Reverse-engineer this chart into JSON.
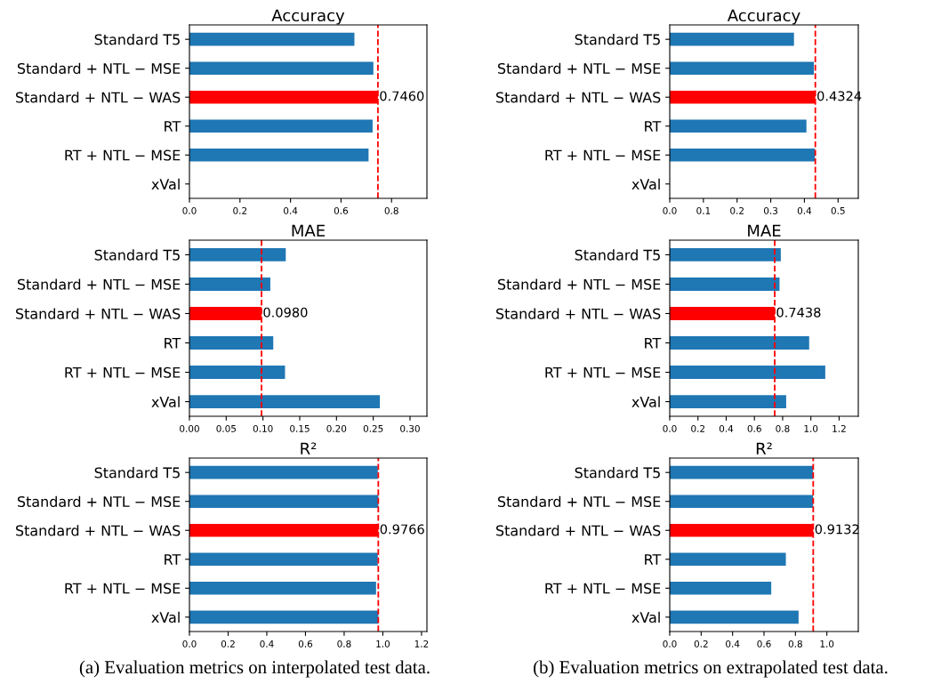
{
  "chart_data": [
    {
      "type": "bar",
      "orientation": "horizontal",
      "title": "Accuracy",
      "categories": [
        "Standard T5",
        "Standard + NTL − MSE",
        "Standard + NTL − WAS",
        "RT",
        "RT + NTL − MSE",
        "xVal"
      ],
      "values": [
        0.653,
        0.728,
        0.746,
        0.725,
        0.709,
        0
      ],
      "colors": [
        "#1f77b4",
        "#1f77b4",
        "#ff0000",
        "#1f77b4",
        "#1f77b4",
        "#1f77b4"
      ],
      "value_labels": [
        null,
        null,
        "0.7460",
        null,
        null,
        null
      ],
      "xlim": [
        0,
        0.94
      ],
      "xticks": [
        {
          "value": 0,
          "label": "0.0"
        },
        {
          "value": 0.2,
          "label": "0.2"
        },
        {
          "value": 0.4,
          "label": "0.4"
        },
        {
          "value": 0.6,
          "label": "0.6"
        },
        {
          "value": 0.8,
          "label": "0.8"
        }
      ],
      "ref_lines": [
        {
          "axis": "x",
          "value": 0.746,
          "label": null,
          "color": "#ff0000",
          "line_style": "dashed"
        }
      ]
    },
    {
      "type": "bar",
      "orientation": "horizontal",
      "title": "Accuracy",
      "categories": [
        "Standard T5",
        "Standard + NTL − MSE",
        "Standard + NTL − WAS",
        "RT",
        "RT + NTL − MSE",
        "xVal"
      ],
      "values": [
        0.369,
        0.428,
        0.4324,
        0.406,
        0.431,
        0
      ],
      "colors": [
        "#1f77b4",
        "#1f77b4",
        "#ff0000",
        "#1f77b4",
        "#1f77b4",
        "#1f77b4"
      ],
      "value_labels": [
        null,
        null,
        "0.4324",
        null,
        null,
        null
      ],
      "xlim": [
        0,
        0.56
      ],
      "xticks": [
        {
          "value": 0,
          "label": "0.0"
        },
        {
          "value": 0.1,
          "label": "0.1"
        },
        {
          "value": 0.2,
          "label": "0.2"
        },
        {
          "value": 0.3,
          "label": "0.3"
        },
        {
          "value": 0.4,
          "label": "0.4"
        },
        {
          "value": 0.5,
          "label": "0.5"
        }
      ],
      "ref_lines": [
        {
          "axis": "x",
          "value": 0.4324,
          "label": null,
          "color": "#ff0000",
          "line_style": "dashed"
        }
      ]
    },
    {
      "type": "bar",
      "orientation": "horizontal",
      "title": "MAE",
      "categories": [
        "Standard T5",
        "Standard + NTL − MSE",
        "Standard + NTL − WAS",
        "RT",
        "RT + NTL − MSE",
        "xVal"
      ],
      "values": [
        0.131,
        0.11,
        0.098,
        0.114,
        0.13,
        0.259
      ],
      "colors": [
        "#1f77b4",
        "#1f77b4",
        "#ff0000",
        "#1f77b4",
        "#1f77b4",
        "#1f77b4"
      ],
      "value_labels": [
        null,
        null,
        "0.0980",
        null,
        null,
        null
      ],
      "xlim": [
        0,
        0.323
      ],
      "xticks": [
        {
          "value": 0,
          "label": "0.00"
        },
        {
          "value": 0.05,
          "label": "0.05"
        },
        {
          "value": 0.1,
          "label": "0.10"
        },
        {
          "value": 0.15,
          "label": "0.15"
        },
        {
          "value": 0.2,
          "label": "0.20"
        },
        {
          "value": 0.25,
          "label": "0.25"
        },
        {
          "value": 0.3,
          "label": "0.30"
        }
      ],
      "ref_lines": [
        {
          "axis": "x",
          "value": 0.098,
          "label": null,
          "color": "#ff0000",
          "line_style": "dashed"
        }
      ]
    },
    {
      "type": "bar",
      "orientation": "horizontal",
      "title": "MAE",
      "categories": [
        "Standard T5",
        "Standard + NTL − MSE",
        "Standard + NTL − WAS",
        "RT",
        "RT + NTL − MSE",
        "xVal"
      ],
      "values": [
        0.787,
        0.778,
        0.7438,
        0.988,
        1.102,
        0.825
      ],
      "colors": [
        "#1f77b4",
        "#1f77b4",
        "#ff0000",
        "#1f77b4",
        "#1f77b4",
        "#1f77b4"
      ],
      "value_labels": [
        null,
        null,
        "0.7438",
        null,
        null,
        null
      ],
      "xlim": [
        0,
        1.336
      ],
      "xticks": [
        {
          "value": 0,
          "label": "0.0"
        },
        {
          "value": 0.2,
          "label": "0.2"
        },
        {
          "value": 0.4,
          "label": "0.4"
        },
        {
          "value": 0.6,
          "label": "0.6"
        },
        {
          "value": 0.8,
          "label": "0.8"
        },
        {
          "value": 1.0,
          "label": "1.0"
        },
        {
          "value": 1.2,
          "label": "1.2"
        }
      ],
      "ref_lines": [
        {
          "axis": "x",
          "value": 0.7438,
          "label": null,
          "color": "#ff0000",
          "line_style": "dashed"
        }
      ]
    },
    {
      "type": "bar",
      "orientation": "horizontal",
      "title": "R²",
      "categories": [
        "Standard T5",
        "Standard + NTL − MSE",
        "Standard + NTL − WAS",
        "RT",
        "RT + NTL − MSE",
        "xVal"
      ],
      "values": [
        0.974,
        0.977,
        0.9766,
        0.974,
        0.965,
        0.977
      ],
      "colors": [
        "#1f77b4",
        "#1f77b4",
        "#ff0000",
        "#1f77b4",
        "#1f77b4",
        "#1f77b4"
      ],
      "value_labels": [
        null,
        null,
        "0.9766",
        null,
        null,
        null
      ],
      "xlim": [
        0,
        1.228
      ],
      "xticks": [
        {
          "value": 0,
          "label": "0.0"
        },
        {
          "value": 0.2,
          "label": "0.2"
        },
        {
          "value": 0.4,
          "label": "0.4"
        },
        {
          "value": 0.6,
          "label": "0.6"
        },
        {
          "value": 0.8,
          "label": "0.8"
        },
        {
          "value": 1.0,
          "label": "1.0"
        },
        {
          "value": 1.2,
          "label": "1.2"
        }
      ],
      "ref_lines": [
        {
          "axis": "x",
          "value": 0.9766,
          "label": null,
          "color": "#ff0000",
          "line_style": "dashed"
        }
      ],
      "annotations": [
        "(a) Evaluation metrics on interpolated test data."
      ]
    },
    {
      "type": "bar",
      "orientation": "horizontal",
      "title": "R²",
      "categories": [
        "Standard T5",
        "Standard + NTL − MSE",
        "Standard + NTL − WAS",
        "RT",
        "RT + NTL − MSE",
        "xVal"
      ],
      "values": [
        0.912,
        0.912,
        0.9132,
        0.739,
        0.646,
        0.82
      ],
      "colors": [
        "#1f77b4",
        "#1f77b4",
        "#ff0000",
        "#1f77b4",
        "#1f77b4",
        "#1f77b4"
      ],
      "value_labels": [
        null,
        null,
        "0.9132",
        null,
        null,
        null
      ],
      "xlim": [
        0,
        1.2
      ],
      "xticks": [
        {
          "value": 0,
          "label": "0.0"
        },
        {
          "value": 0.2,
          "label": "0.2"
        },
        {
          "value": 0.4,
          "label": "0.4"
        },
        {
          "value": 0.6,
          "label": "0.6"
        },
        {
          "value": 0.8,
          "label": "0.8"
        },
        {
          "value": 1.0,
          "label": "1.0"
        }
      ],
      "ref_lines": [
        {
          "axis": "x",
          "value": 0.9132,
          "label": null,
          "color": "#ff0000",
          "line_style": "dashed"
        }
      ],
      "annotations": [
        "(b) Evaluation metrics on extrapolated test data."
      ]
    }
  ]
}
